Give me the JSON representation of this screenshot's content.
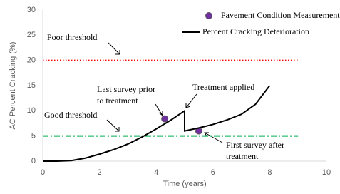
{
  "chart_data": {
    "type": "line",
    "xlabel": "Time (years)",
    "ylabel": "AC Percent Cracking (%)",
    "xlim": [
      0,
      10
    ],
    "xticks": [
      0,
      2,
      4,
      6,
      8,
      10
    ],
    "ylim": [
      0,
      30
    ],
    "yticks": [
      0,
      5,
      10,
      15,
      20,
      25,
      30
    ],
    "grid": false,
    "legend": "top-right",
    "series": [
      {
        "name": "Pavement Condition Measurements",
        "kind": "scatter",
        "color": "#7030a0",
        "x": [
          4.3,
          5.5
        ],
        "values": [
          8.4,
          6.0
        ]
      },
      {
        "name": "Percent Cracking Deterioration",
        "kind": "line",
        "color": "#000000",
        "x": [
          0,
          0.5,
          1,
          1.5,
          2,
          2.5,
          3,
          3.5,
          4,
          4.5,
          5,
          5,
          5.5,
          6,
          6.5,
          7,
          7.5,
          8
        ],
        "values": [
          0,
          0,
          0.1,
          0.6,
          1.4,
          2.3,
          3.4,
          4.8,
          6.4,
          8.1,
          10,
          6,
          6.6,
          7.3,
          8.2,
          9.3,
          11.3,
          15
        ]
      }
    ],
    "thresholds": [
      {
        "name": "Poor threshold",
        "value": 20,
        "x": [
          0,
          9
        ],
        "color": "#ff0000",
        "style": "dotted"
      },
      {
        "name": "Good threshold",
        "value": 5,
        "x": [
          0,
          9
        ],
        "color": "#00b050",
        "style": "dashdot"
      }
    ],
    "annotations": [
      {
        "lines": [
          "Last survey prior",
          "to treatment"
        ]
      },
      {
        "lines": [
          "Treatment applied"
        ]
      },
      {
        "lines": [
          "First survey after",
          "treatment"
        ]
      }
    ]
  }
}
